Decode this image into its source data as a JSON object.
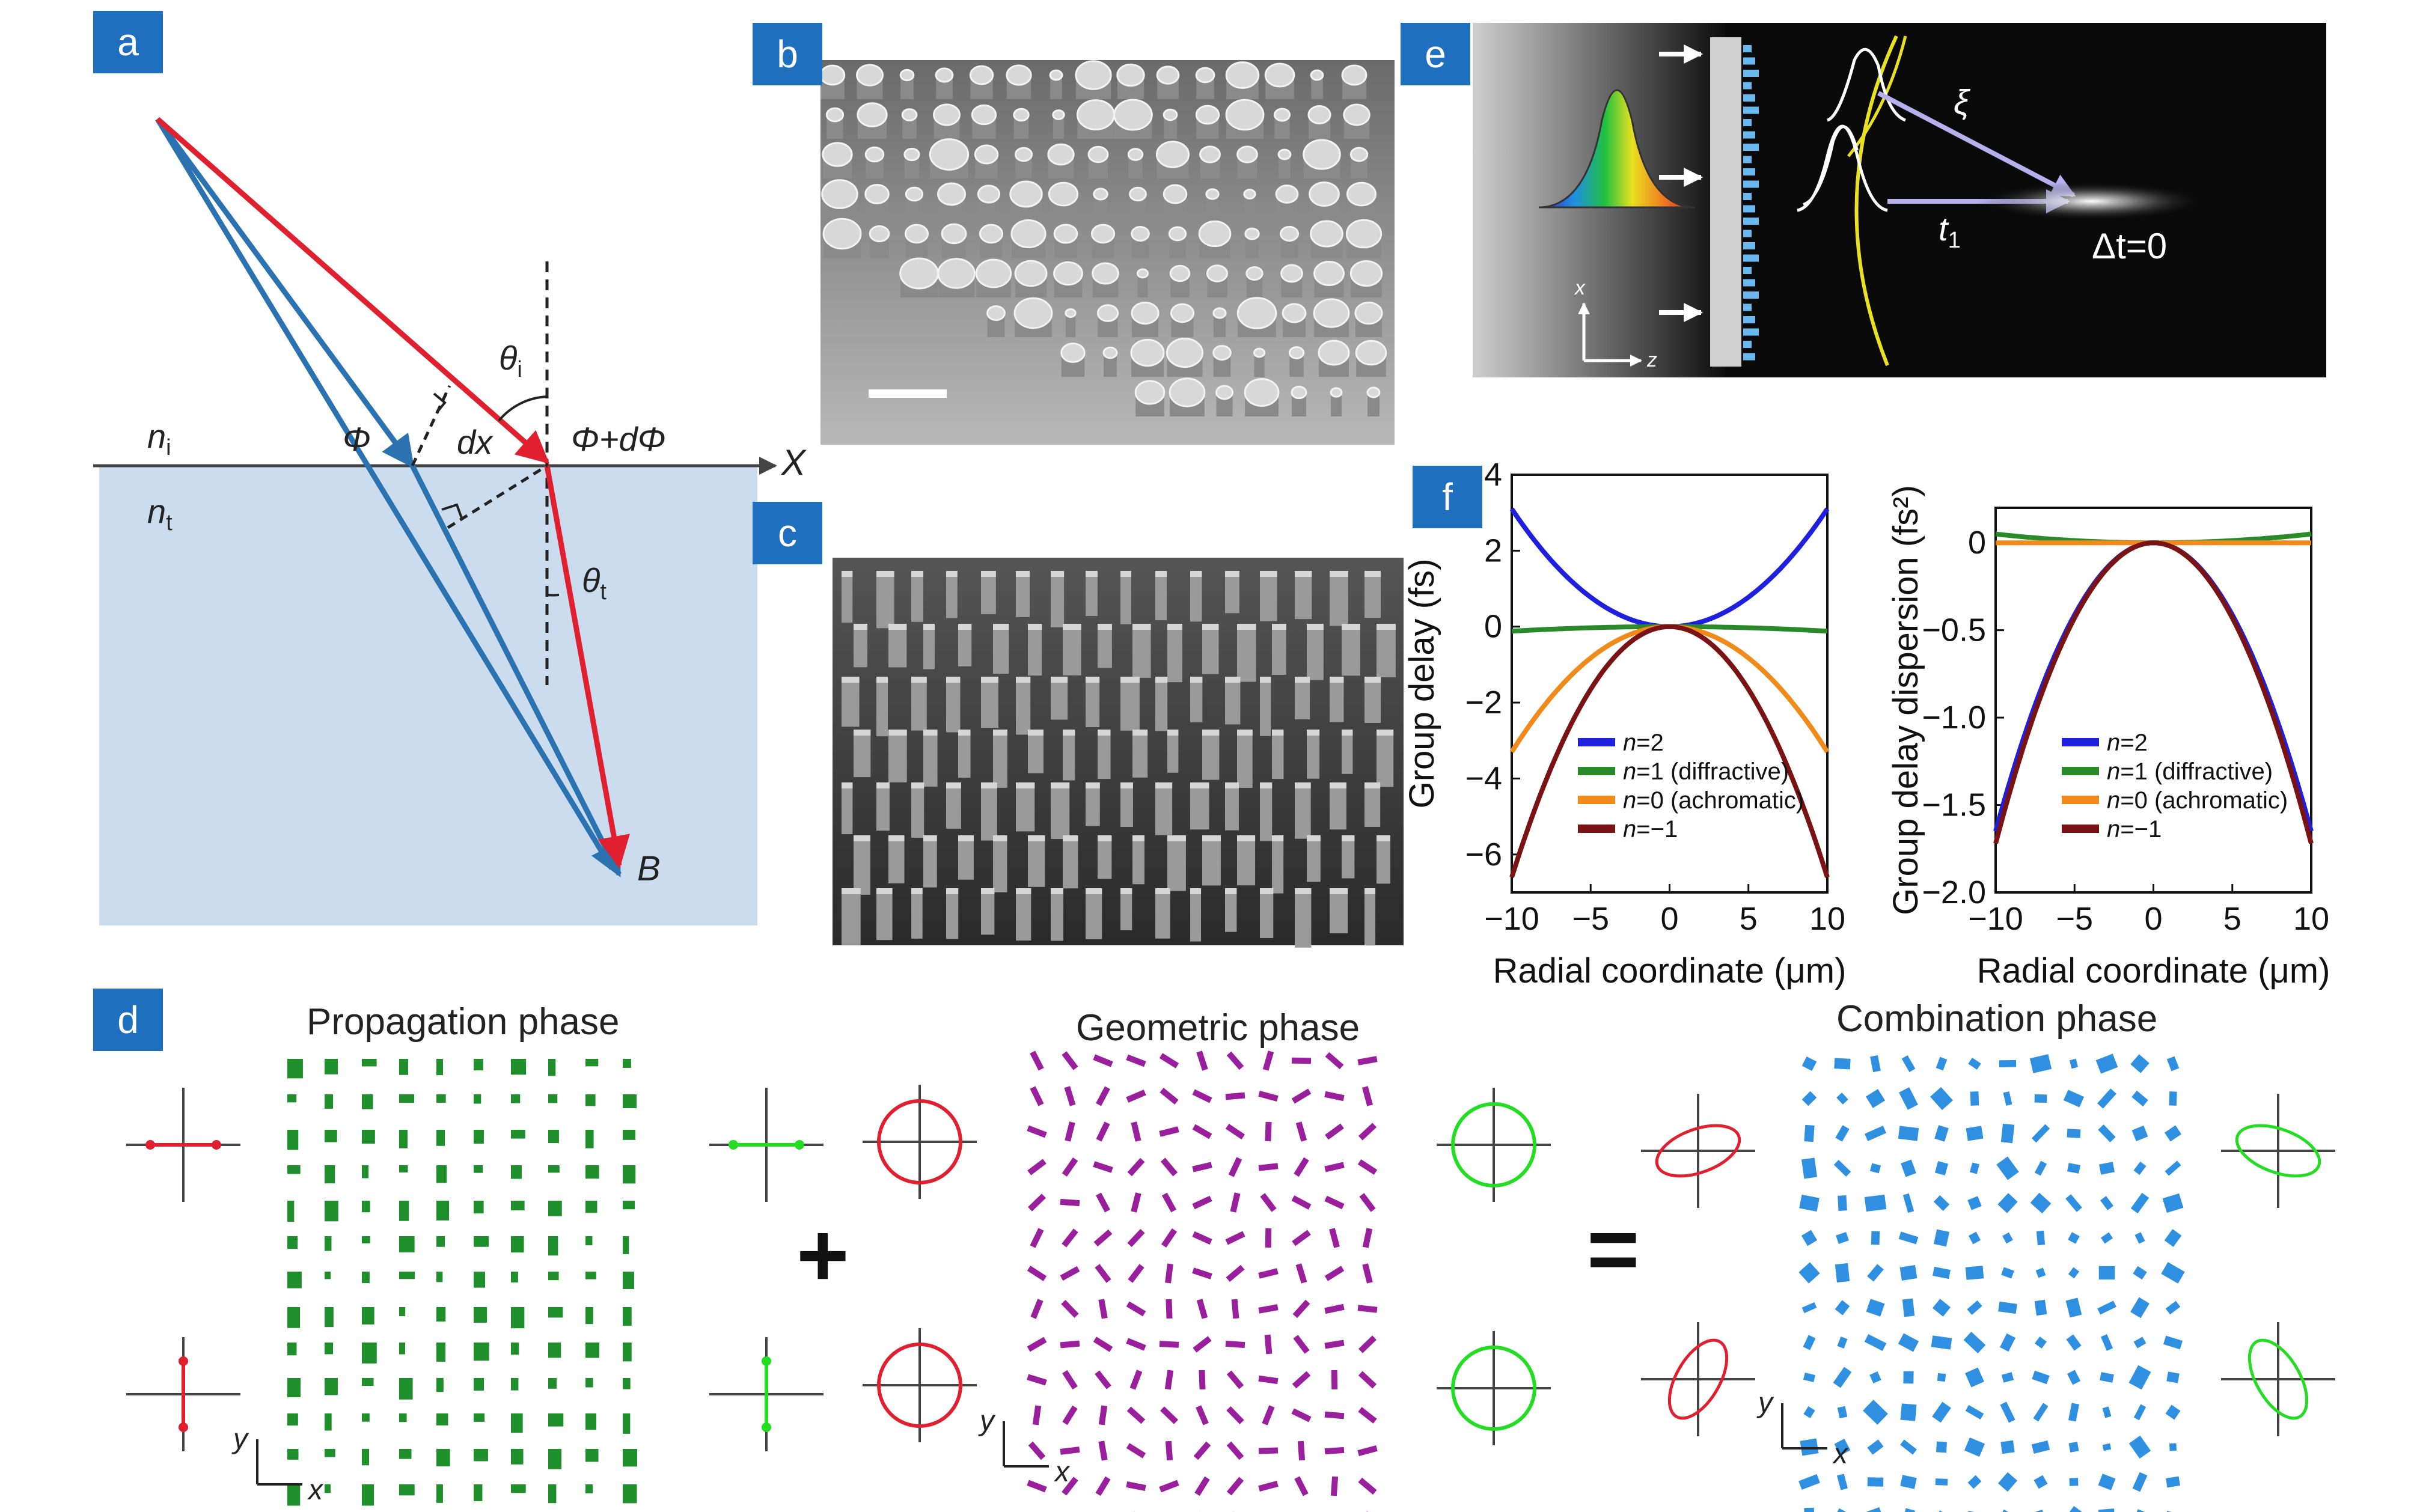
{
  "panels": {
    "a": {
      "label": "a",
      "n_i": "n",
      "n_i_sub": "i",
      "n_t": "n",
      "n_t_sub": "t",
      "phi": "Φ",
      "phi_dphi": "Φ+dΦ",
      "dx": "dx",
      "axis_x": "X",
      "theta_i": "θ",
      "theta_i_sub": "i",
      "theta_t": "θ",
      "theta_t_sub": "t",
      "point_b": "B"
    },
    "b": {
      "label": "b"
    },
    "c": {
      "label": "c"
    },
    "d": {
      "label": "d",
      "title_propagation": "Propagation phase",
      "title_geometric": "Geometric phase",
      "title_combination": "Combination phase",
      "plus": "+",
      "equals": "=",
      "axis_x": "x",
      "axis_y": "y"
    },
    "e": {
      "label": "e",
      "xi": "ξ",
      "t1": "t",
      "t1_sub": "1",
      "delta_t": "Δt=0",
      "axis_x": "x",
      "axis_z": "z"
    },
    "f": {
      "label": "f"
    }
  },
  "colors": {
    "red": "#e0202f",
    "blue": "#2a72b0",
    "substrate": "#cbdcef",
    "label_bg": "#1f6fbf",
    "green_pillar": "#1f8f2c",
    "purple": "#9a1f9c",
    "cyan_pillar": "#2f8fe0"
  },
  "chart_data": [
    {
      "type": "line",
      "xlabel": "Radial coordinate (μm)",
      "ylabel": "Group delay (fs)",
      "xlim": [
        -10,
        10
      ],
      "ylim": [
        -7,
        4
      ],
      "xticks": [
        -10,
        -5,
        0,
        5,
        10
      ],
      "xtick_labels": [
        "−10",
        "−5",
        "0",
        "5",
        "10"
      ],
      "yticks": [
        4,
        2,
        0,
        -2,
        -4,
        -6
      ],
      "ytick_labels": [
        "4",
        "2",
        "0",
        "−2",
        "−4",
        "−6"
      ],
      "legend_position": "bottom",
      "series": [
        {
          "name": "n=2",
          "legend": {
            "italic": "n",
            "rest": "=2"
          },
          "color": "#1f1fe0",
          "form": "quad",
          "a": 0.031,
          "c": 0
        },
        {
          "name": "n=1 (diffractive)",
          "legend": {
            "italic": "n",
            "rest": "=1 (diffractive)"
          },
          "color": "#2a8a2a",
          "form": "quad",
          "a": -0.0012,
          "c": 0
        },
        {
          "name": "n=0 (achromatic)",
          "legend": {
            "italic": "n",
            "rest": "=0 (achromatic)"
          },
          "color": "#f08a1a",
          "form": "quad",
          "a": -0.033,
          "c": 0
        },
        {
          "name": "n=−1",
          "legend": {
            "italic": "n",
            "rest": "=−1"
          },
          "color": "#7a1414",
          "form": "quad",
          "a": -0.066,
          "c": 0
        }
      ]
    },
    {
      "type": "line",
      "xlabel": "Radial coordinate (μm)",
      "ylabel": "Group delay dispersion (fs²)",
      "xlim": [
        -10,
        10
      ],
      "ylim": [
        -2.0,
        0.2
      ],
      "xticks": [
        -10,
        -5,
        0,
        5,
        10
      ],
      "xtick_labels": [
        "−10",
        "−5",
        "0",
        "5",
        "10"
      ],
      "yticks": [
        0,
        -0.5,
        -1.0,
        -1.5,
        -2.0
      ],
      "ytick_labels": [
        "0",
        "−0.5",
        "−1.0",
        "−1.5",
        "−2.0"
      ],
      "legend_position": "bottom",
      "series": [
        {
          "name": "n=2",
          "legend": {
            "italic": "n",
            "rest": "=2"
          },
          "color": "#1f1fe0",
          "form": "quad",
          "a": -0.0165,
          "c": 0
        },
        {
          "name": "n=1 (diffractive)",
          "legend": {
            "italic": "n",
            "rest": "=1 (diffractive)"
          },
          "color": "#2a8a2a",
          "form": "quad",
          "a": 0.0005,
          "c": 0
        },
        {
          "name": "n=0 (achromatic)",
          "legend": {
            "italic": "n",
            "rest": "=0 (achromatic)"
          },
          "color": "#f08a1a",
          "form": "quad",
          "a": 0,
          "c": 0
        },
        {
          "name": "n=−1",
          "legend": {
            "italic": "n",
            "rest": "=−1"
          },
          "color": "#7a1414",
          "form": "quad",
          "a": -0.0172,
          "c": 0
        }
      ]
    }
  ]
}
